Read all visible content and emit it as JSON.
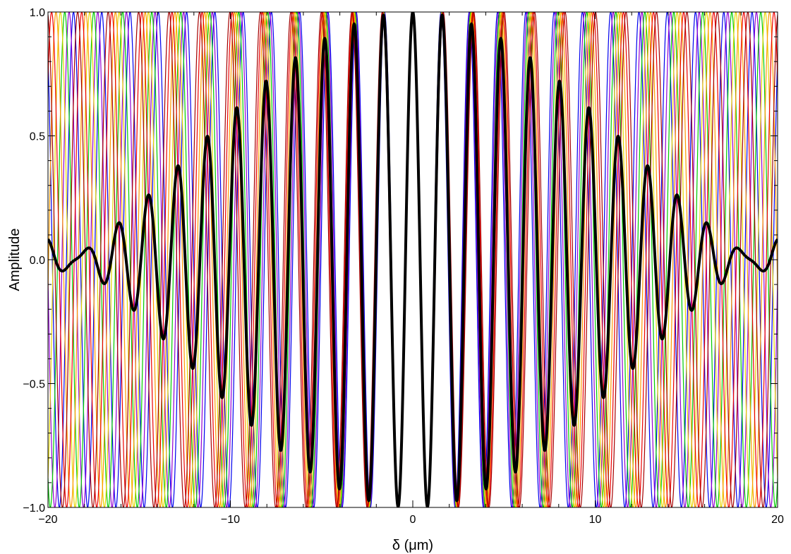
{
  "chart_data": {
    "type": "line",
    "title": "",
    "xlabel": "δ (μm)",
    "ylabel": "Amplitude",
    "xlim": [
      -20,
      20
    ],
    "ylim": [
      -1.0,
      1.0
    ],
    "grid": false,
    "legend": "none",
    "x_ticks": [
      -20,
      -10,
      0,
      10,
      20
    ],
    "x_tick_labels": [
      "−20",
      "−10",
      "0",
      "10",
      "20"
    ],
    "y_ticks": [
      -1.0,
      -0.5,
      0.0,
      0.5,
      1.0
    ],
    "y_tick_labels": [
      "−1.0",
      "−0.5",
      "0.0",
      "0.5",
      "1.0"
    ],
    "series": [
      {
        "wavelength_um": 1.55,
        "color": "#0000ee",
        "line": "thin",
        "function": "cos(2*pi*x/1.55)"
      },
      {
        "wavelength_um": 1.57,
        "color": "#9400d3",
        "line": "thin",
        "function": "cos(2*pi*x/1.57)"
      },
      {
        "wavelength_um": 1.59,
        "color": "#00cc00",
        "line": "thin",
        "function": "cos(2*pi*x/1.59)"
      },
      {
        "wavelength_um": 1.61,
        "color": "#e6d600",
        "line": "thin",
        "function": "cos(2*pi*x/1.61)"
      },
      {
        "wavelength_um": 1.63,
        "color": "#ff9900",
        "line": "thin",
        "function": "cos(2*pi*x/1.63)"
      },
      {
        "wavelength_um": 1.65,
        "color": "#ee0000",
        "line": "thin",
        "function": "cos(2*pi*x/1.65)"
      },
      {
        "wavelength_um": 1.67,
        "color": "#a50000",
        "line": "thin",
        "function": "cos(2*pi*x/1.67)"
      },
      {
        "wavelength_um": null,
        "color": "#000000",
        "line": "thick",
        "function": "mean of all cosines"
      }
    ]
  }
}
